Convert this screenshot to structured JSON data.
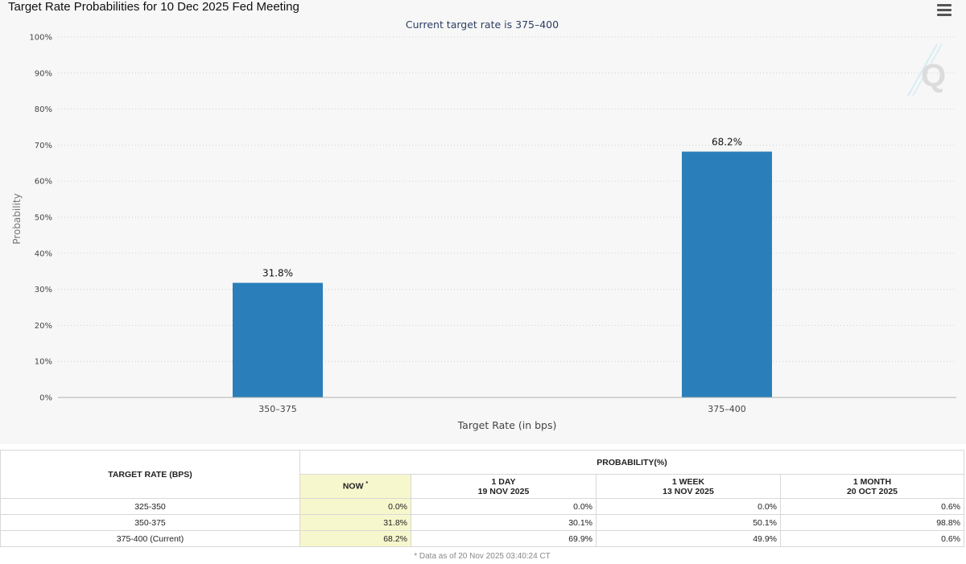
{
  "chart": {
    "title": "Target Rate Probabilities for 10 Dec 2025 Fed Meeting",
    "subtitle": "Current target rate is 375–400",
    "menu_icon": "hamburger-menu-icon",
    "watermark": "Q"
  },
  "chart_data": {
    "type": "bar",
    "title": "Target Rate Probabilities for 10 Dec 2025 Fed Meeting",
    "subtitle": "Current target rate is 375–400",
    "categories": [
      "350–375",
      "375–400"
    ],
    "values": [
      31.8,
      68.2
    ],
    "data_labels": [
      "31.8%",
      "68.2%"
    ],
    "xlabel": "Target Rate (in bps)",
    "ylabel": "Probability",
    "ylim": [
      0,
      100
    ],
    "yticks": [
      "0%",
      "10%",
      "20%",
      "30%",
      "40%",
      "50%",
      "60%",
      "70%",
      "80%",
      "90%",
      "100%"
    ],
    "grid": true,
    "bar_color": "#2a7fba"
  },
  "table": {
    "target_rate_header": "TARGET RATE (BPS)",
    "probability_header": "PROBABILITY(%)",
    "col_now": "NOW",
    "col_now_mark": "*",
    "col_1day": "1 DAY",
    "col_1day_date": "19 NOV 2025",
    "col_1week": "1 WEEK",
    "col_1week_date": "13 NOV 2025",
    "col_1month": "1 MONTH",
    "col_1month_date": "20 OCT 2025",
    "rows": [
      {
        "rate": "325-350",
        "now": "0.0%",
        "day": "0.0%",
        "week": "0.0%",
        "month": "0.6%"
      },
      {
        "rate": "350-375",
        "now": "31.8%",
        "day": "30.1%",
        "week": "50.1%",
        "month": "98.8%"
      },
      {
        "rate": "375-400 (Current)",
        "now": "68.2%",
        "day": "69.9%",
        "week": "49.9%",
        "month": "0.6%"
      }
    ],
    "footnote": "* Data as of 20 Nov 2025 03:40:24 CT"
  }
}
